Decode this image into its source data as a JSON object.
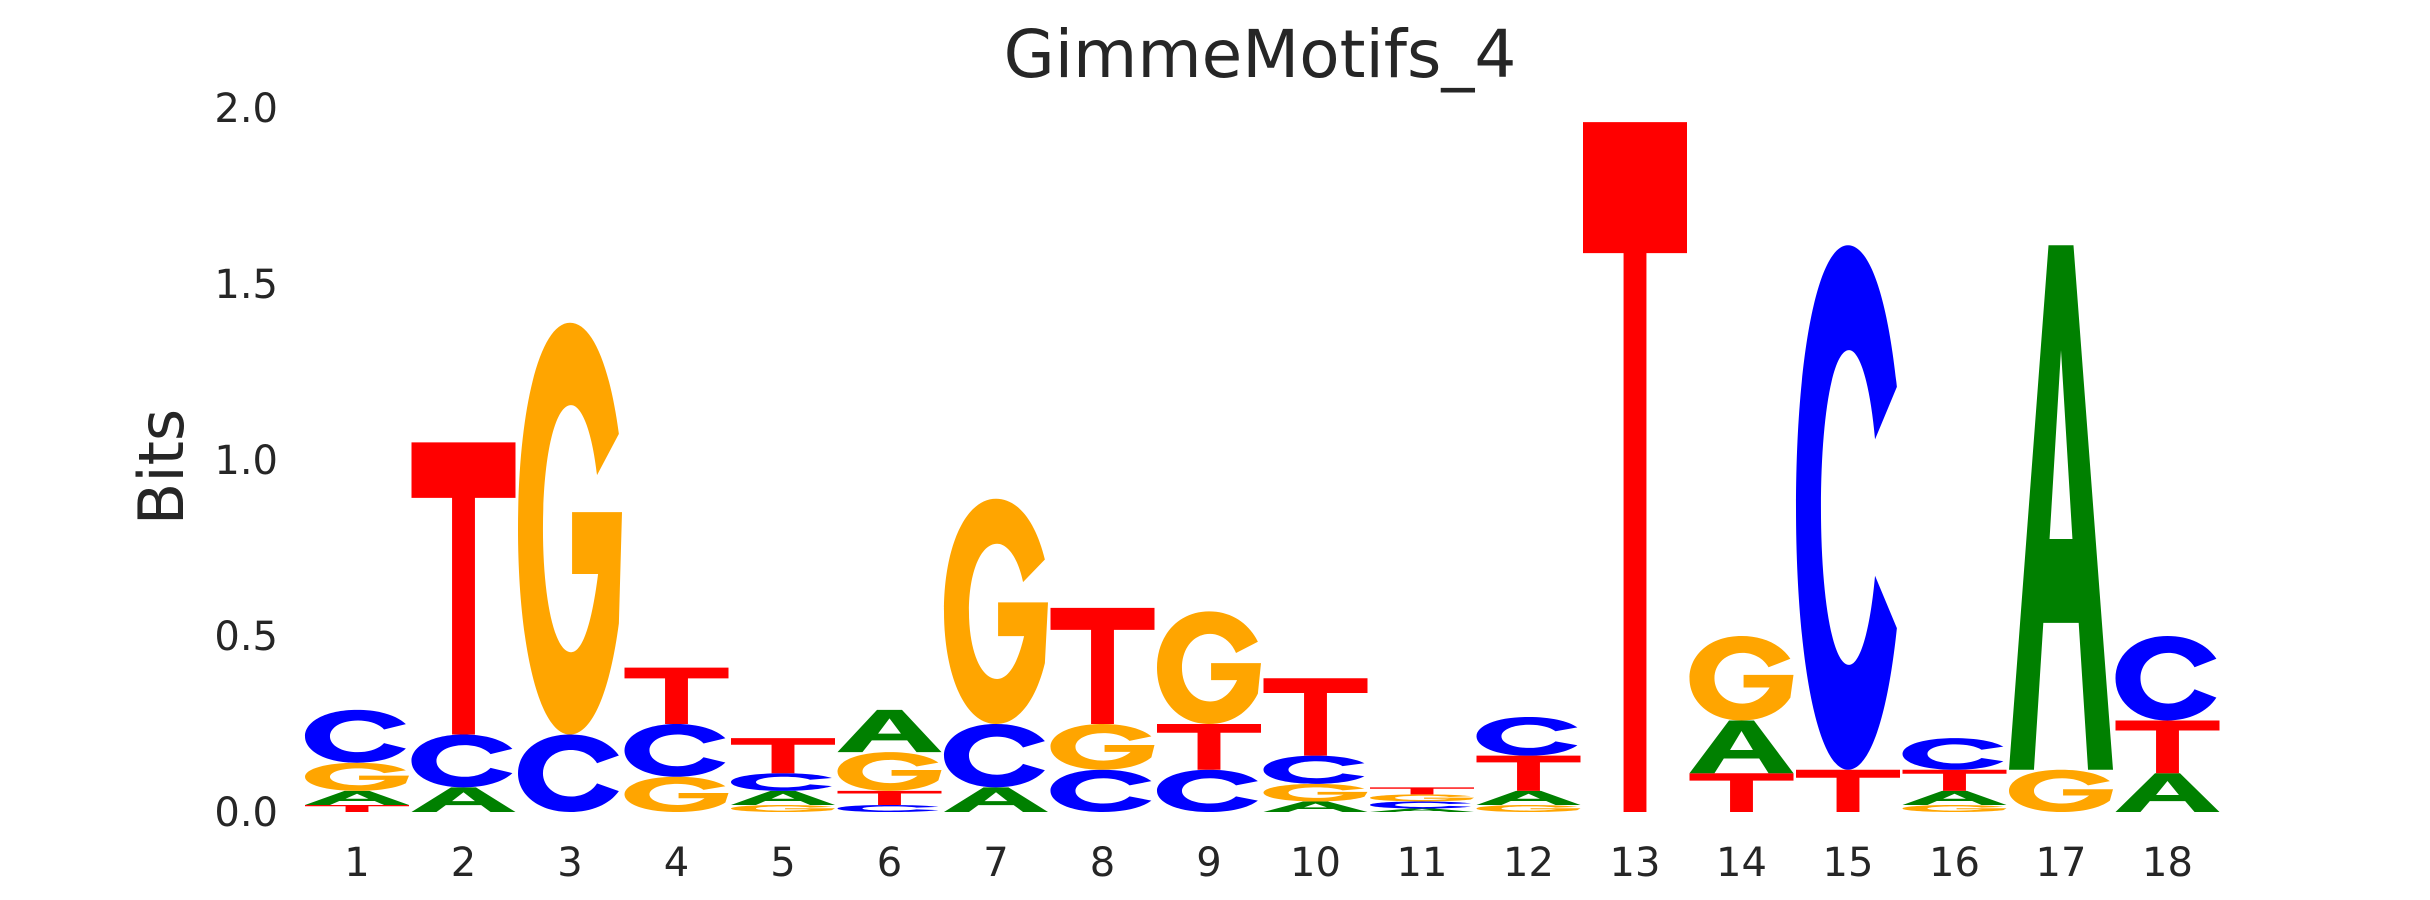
{
  "chart_data": {
    "type": "sequence-logo",
    "title": "GimmeMotifs_4",
    "xlabel": "",
    "ylabel": "Bits",
    "ylim": [
      0,
      2.0
    ],
    "yticks": [
      "0.0",
      "0.5",
      "1.0",
      "1.5",
      "2.0"
    ],
    "grid": false,
    "colors": {
      "A": "#008000",
      "C": "#0000ff",
      "G": "#ffa500",
      "T": "#ff0000"
    },
    "positions": [
      {
        "pos": "1",
        "letters": [
          {
            "b": "T",
            "h": 0.02
          },
          {
            "b": "A",
            "h": 0.04
          },
          {
            "b": "G",
            "h": 0.08
          },
          {
            "b": "C",
            "h": 0.15
          }
        ]
      },
      {
        "pos": "2",
        "letters": [
          {
            "b": "A",
            "h": 0.07
          },
          {
            "b": "C",
            "h": 0.15
          },
          {
            "b": "T",
            "h": 0.83
          }
        ]
      },
      {
        "pos": "3",
        "letters": [
          {
            "b": "C",
            "h": 0.22
          },
          {
            "b": "G",
            "h": 1.17
          }
        ]
      },
      {
        "pos": "4",
        "letters": [
          {
            "b": "G",
            "h": 0.1
          },
          {
            "b": "C",
            "h": 0.15
          },
          {
            "b": "T",
            "h": 0.16
          }
        ]
      },
      {
        "pos": "5",
        "letters": [
          {
            "b": "G",
            "h": 0.02
          },
          {
            "b": "A",
            "h": 0.04
          },
          {
            "b": "C",
            "h": 0.05
          },
          {
            "b": "T",
            "h": 0.1
          }
        ]
      },
      {
        "pos": "6",
        "letters": [
          {
            "b": "C",
            "h": 0.02
          },
          {
            "b": "T",
            "h": 0.04
          },
          {
            "b": "G",
            "h": 0.11
          },
          {
            "b": "A",
            "h": 0.12
          }
        ]
      },
      {
        "pos": "7",
        "letters": [
          {
            "b": "A",
            "h": 0.07
          },
          {
            "b": "C",
            "h": 0.18
          },
          {
            "b": "G",
            "h": 0.64
          }
        ]
      },
      {
        "pos": "8",
        "letters": [
          {
            "b": "C",
            "h": 0.12
          },
          {
            "b": "G",
            "h": 0.13
          },
          {
            "b": "T",
            "h": 0.33
          }
        ]
      },
      {
        "pos": "9",
        "letters": [
          {
            "b": "C",
            "h": 0.12
          },
          {
            "b": "T",
            "h": 0.13
          },
          {
            "b": "G",
            "h": 0.32
          }
        ]
      },
      {
        "pos": "10",
        "letters": [
          {
            "b": "A",
            "h": 0.03
          },
          {
            "b": "G",
            "h": 0.05
          },
          {
            "b": "C",
            "h": 0.08
          },
          {
            "b": "T",
            "h": 0.22
          }
        ]
      },
      {
        "pos": "11",
        "letters": [
          {
            "b": "A",
            "h": 0.01
          },
          {
            "b": "C",
            "h": 0.02
          },
          {
            "b": "G",
            "h": 0.02
          },
          {
            "b": "T",
            "h": 0.02
          }
        ]
      },
      {
        "pos": "12",
        "letters": [
          {
            "b": "G",
            "h": 0.02
          },
          {
            "b": "A",
            "h": 0.04
          },
          {
            "b": "T",
            "h": 0.1
          },
          {
            "b": "C",
            "h": 0.11
          }
        ]
      },
      {
        "pos": "13",
        "letters": [
          {
            "b": "T",
            "h": 1.96
          }
        ]
      },
      {
        "pos": "14",
        "letters": [
          {
            "b": "T",
            "h": 0.11
          },
          {
            "b": "A",
            "h": 0.15
          },
          {
            "b": "G",
            "h": 0.24
          }
        ]
      },
      {
        "pos": "15",
        "letters": [
          {
            "b": "T",
            "h": 0.12
          },
          {
            "b": "C",
            "h": 1.49
          }
        ]
      },
      {
        "pos": "16",
        "letters": [
          {
            "b": "G",
            "h": 0.02
          },
          {
            "b": "A",
            "h": 0.04
          },
          {
            "b": "T",
            "h": 0.06
          },
          {
            "b": "C",
            "h": 0.09
          }
        ]
      },
      {
        "pos": "17",
        "letters": [
          {
            "b": "G",
            "h": 0.12
          },
          {
            "b": "A",
            "h": 1.49
          }
        ]
      },
      {
        "pos": "18",
        "letters": [
          {
            "b": "A",
            "h": 0.11
          },
          {
            "b": "T",
            "h": 0.15
          },
          {
            "b": "C",
            "h": 0.24
          }
        ]
      }
    ]
  }
}
